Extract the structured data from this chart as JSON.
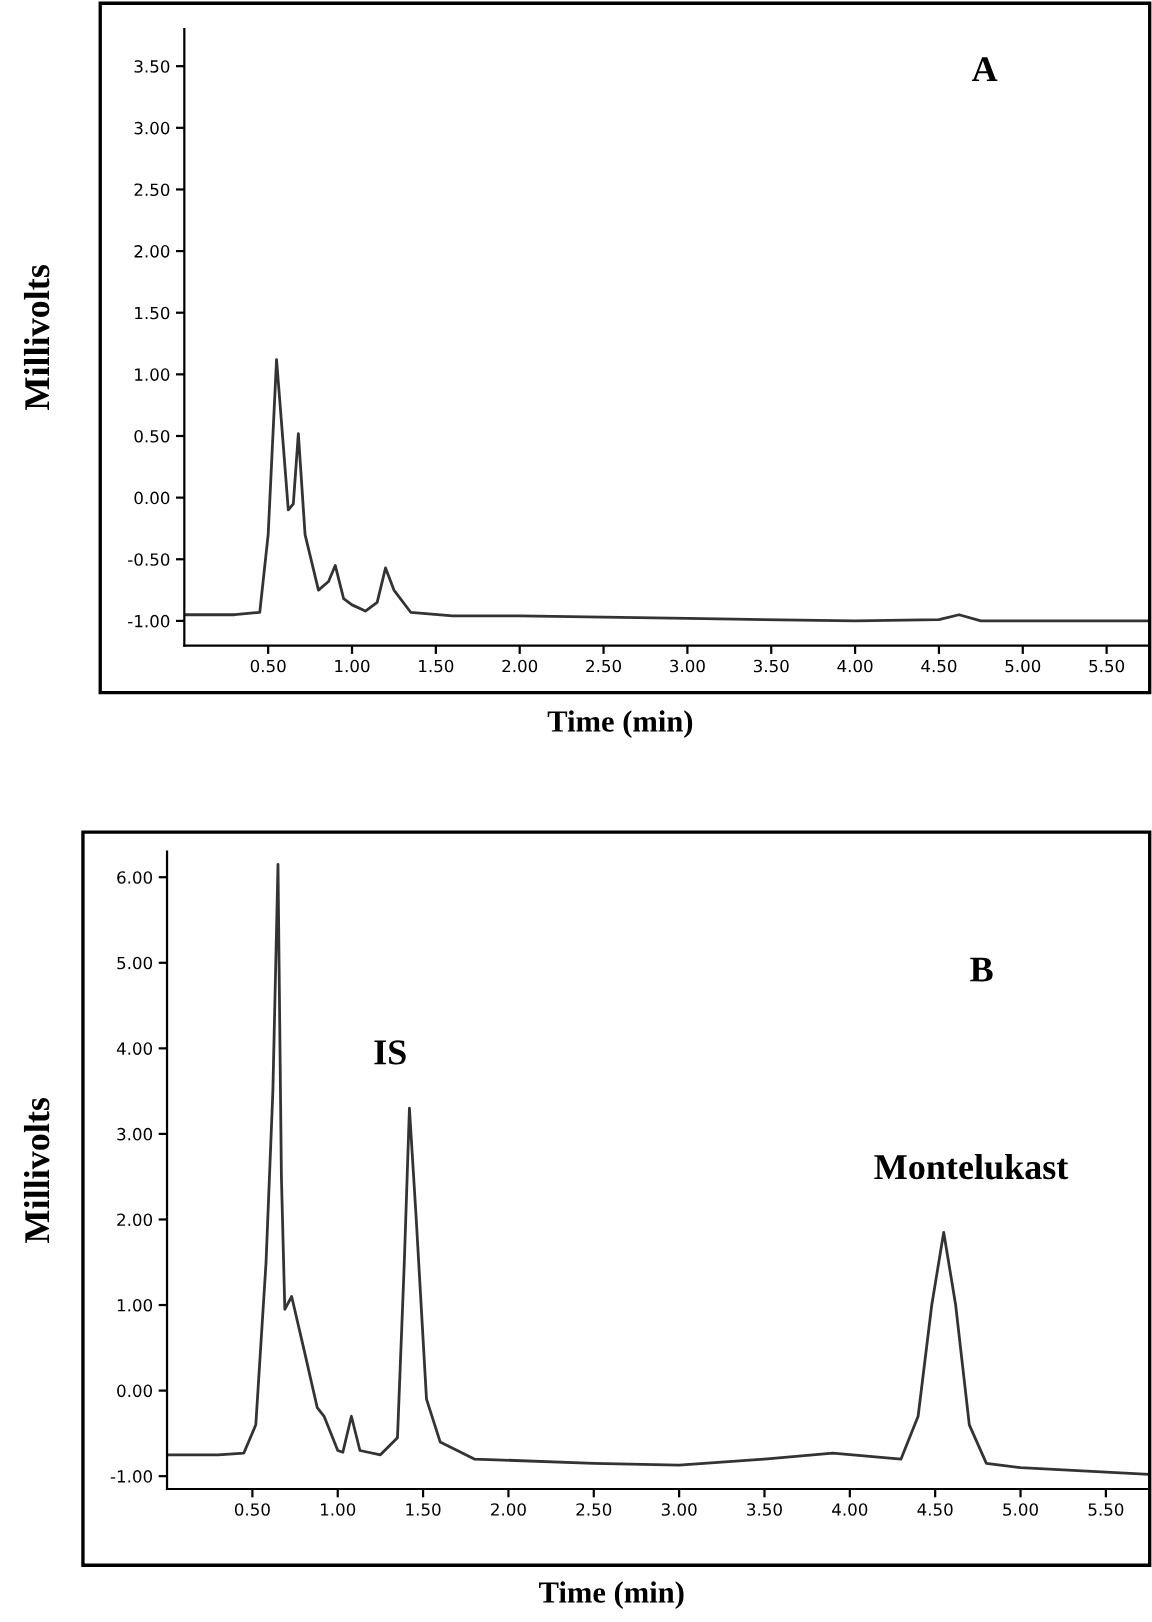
{
  "chart_data": [
    {
      "type": "line",
      "title": "A",
      "xlabel": "Time (min)",
      "ylabel": "Millivolts",
      "x": [
        0,
        0.3,
        0.45,
        0.5,
        0.55,
        0.58,
        0.62,
        0.65,
        0.68,
        0.72,
        0.8,
        0.86,
        0.9,
        0.95,
        1.0,
        1.08,
        1.15,
        1.2,
        1.25,
        1.35,
        1.6,
        2.0,
        3.0,
        4.0,
        4.5,
        4.62,
        4.75,
        5.0,
        5.75
      ],
      "series": [
        {
          "color": "#333333",
          "values": [
            -0.95,
            -0.95,
            -0.93,
            -0.3,
            1.12,
            0.6,
            -0.1,
            -0.05,
            0.52,
            -0.3,
            -0.75,
            -0.68,
            -0.55,
            -0.82,
            -0.87,
            -0.92,
            -0.85,
            -0.57,
            -0.75,
            -0.93,
            -0.96,
            -0.96,
            -0.98,
            -1.0,
            -0.99,
            -0.95,
            -1.0,
            -1.0,
            -1.0
          ]
        }
      ],
      "xlim": [
        0,
        5.75
      ],
      "ylim": [
        -1.2,
        3.8
      ],
      "xticks": [
        {
          "value": 0.5,
          "label": "0.50"
        },
        {
          "value": 1.0,
          "label": "1.00"
        },
        {
          "value": 1.5,
          "label": "1.50"
        },
        {
          "value": 2.0,
          "label": "2.00"
        },
        {
          "value": 2.5,
          "label": "2.50"
        },
        {
          "value": 3.0,
          "label": "3.00"
        },
        {
          "value": 3.5,
          "label": "3.50"
        },
        {
          "value": 4.0,
          "label": "4.00"
        },
        {
          "value": 4.5,
          "label": "4.50"
        },
        {
          "value": 5.0,
          "label": "5.00"
        },
        {
          "value": 5.5,
          "label": "5.50"
        }
      ],
      "yticks": [
        {
          "value": -1.0,
          "label": "-1.00"
        },
        {
          "value": -0.5,
          "label": "-0.50"
        },
        {
          "value": 0,
          "label": "0.00"
        },
        {
          "value": 0.5,
          "label": "0.50"
        },
        {
          "value": 1.0,
          "label": "1.00"
        },
        {
          "value": 1.5,
          "label": "1.50"
        },
        {
          "value": 2.0,
          "label": "2.00"
        },
        {
          "value": 2.5,
          "label": "2.50"
        },
        {
          "value": 3.0,
          "label": "3.00"
        },
        {
          "value": 3.5,
          "label": "3.50"
        }
      ],
      "grid": false,
      "legend": false
    },
    {
      "type": "line",
      "title": "B",
      "xlabel": "Time (min)",
      "ylabel": "Millivolts",
      "annotations": [
        "IS",
        "Montelukast"
      ],
      "x": [
        0,
        0.3,
        0.45,
        0.52,
        0.58,
        0.62,
        0.65,
        0.67,
        0.69,
        0.73,
        0.8,
        0.88,
        0.92,
        1.0,
        1.03,
        1.08,
        1.13,
        1.25,
        1.35,
        1.39,
        1.42,
        1.46,
        1.52,
        1.6,
        1.8,
        2.5,
        3.0,
        3.5,
        3.9,
        4.3,
        4.4,
        4.48,
        4.55,
        4.62,
        4.7,
        4.8,
        5.0,
        5.75
      ],
      "series": [
        {
          "color": "#333333",
          "values": [
            -0.75,
            -0.75,
            -0.73,
            -0.4,
            1.5,
            3.5,
            6.15,
            2.5,
            0.95,
            1.1,
            0.5,
            -0.2,
            -0.3,
            -0.7,
            -0.72,
            -0.3,
            -0.7,
            -0.75,
            -0.55,
            1.5,
            3.3,
            2.0,
            -0.1,
            -0.6,
            -0.8,
            -0.85,
            -0.87,
            -0.8,
            -0.73,
            -0.8,
            -0.3,
            1.0,
            1.85,
            1.0,
            -0.4,
            -0.85,
            -0.9,
            -0.98
          ]
        }
      ],
      "xlim": [
        0,
        5.75
      ],
      "ylim": [
        -1.15,
        6.3
      ],
      "xticks": [
        {
          "value": 0.5,
          "label": "0.50"
        },
        {
          "value": 1.0,
          "label": "1.00"
        },
        {
          "value": 1.5,
          "label": "1.50"
        },
        {
          "value": 2.0,
          "label": "2.00"
        },
        {
          "value": 2.5,
          "label": "2.50"
        },
        {
          "value": 3.0,
          "label": "3.00"
        },
        {
          "value": 3.5,
          "label": "3.50"
        },
        {
          "value": 4.0,
          "label": "4.00"
        },
        {
          "value": 4.5,
          "label": "4.50"
        },
        {
          "value": 5.0,
          "label": "5.00"
        },
        {
          "value": 5.5,
          "label": "5.50"
        }
      ],
      "yticks": [
        {
          "value": -1.0,
          "label": "-1.00"
        },
        {
          "value": 0,
          "label": "0.00"
        },
        {
          "value": 1.0,
          "label": "1.00"
        },
        {
          "value": 2.0,
          "label": "2.00"
        },
        {
          "value": 3.0,
          "label": "3.00"
        },
        {
          "value": 4.0,
          "label": "4.00"
        },
        {
          "value": 5.0,
          "label": "5.00"
        },
        {
          "value": 6.0,
          "label": "6.00"
        }
      ],
      "grid": false,
      "legend": false
    }
  ]
}
